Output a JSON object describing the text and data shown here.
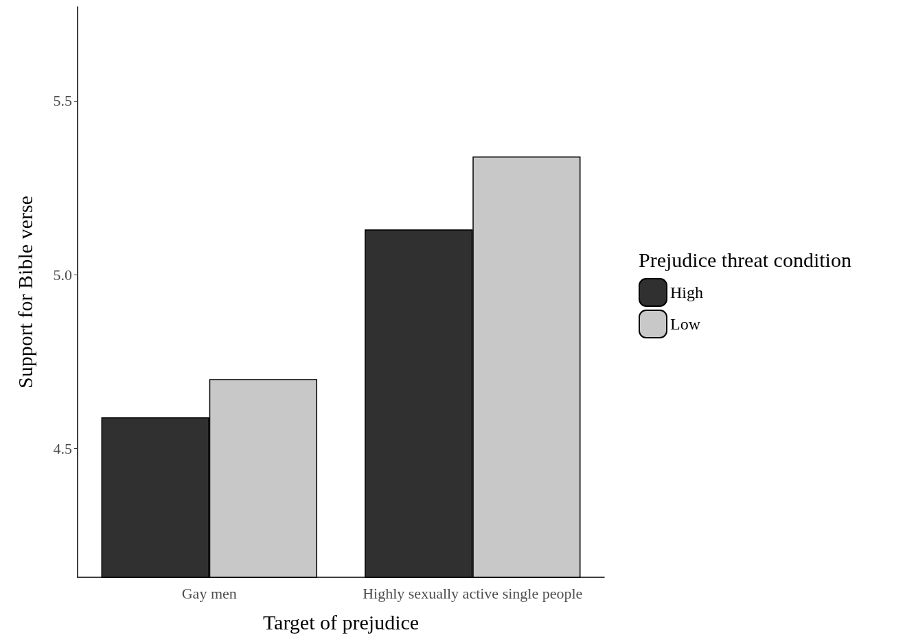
{
  "chart_data": {
    "type": "bar",
    "xlabel": "Target of prejudice",
    "ylabel": "Support for Bible verse",
    "legend_title": "Prejudice threat condition",
    "categories": [
      "Gay men",
      "Highly sexually active single people"
    ],
    "series": [
      {
        "name": "High",
        "color": "#303030",
        "values": [
          4.59,
          5.13
        ]
      },
      {
        "name": "Low",
        "color": "#c8c8c8",
        "values": [
          4.7,
          5.34
        ]
      }
    ],
    "ylim": [
      4.13,
      5.77
    ],
    "yticks": [
      {
        "value": 4.5,
        "label": "4.5"
      },
      {
        "value": 5.0,
        "label": "5.0"
      },
      {
        "value": 5.5,
        "label": "5.5"
      }
    ],
    "grid": false,
    "legend": "right"
  }
}
